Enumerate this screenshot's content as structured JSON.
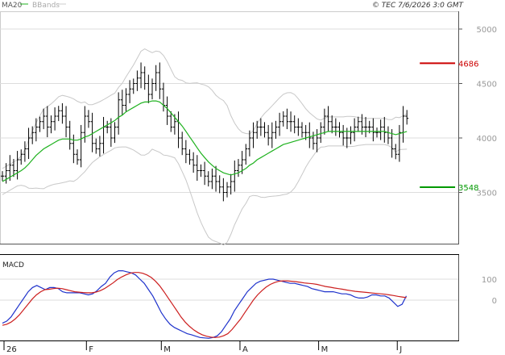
{
  "header": {
    "legend_ma": "MA20",
    "legend_bb": "BBands",
    "source": "© TEC 7/6/2026 3:0 GMT"
  },
  "colors": {
    "ma20": "#1fb21f",
    "bbands": "#c8c8c8",
    "candle": "#000000",
    "resistance": "#cc0000",
    "support": "#009900",
    "macd": "#1f33cc",
    "signal": "#cc1f1f"
  },
  "chart_data": [
    {
      "type": "line",
      "panel": "price",
      "yticks": [
        3500,
        4000,
        4500,
        5000
      ],
      "ylim": [
        3000,
        5200
      ],
      "xticks": [
        {
          "label": "26",
          "index": 0
        },
        {
          "label": "F",
          "index": 22
        },
        {
          "label": "M",
          "index": 42
        },
        {
          "label": "A",
          "index": 63
        },
        {
          "label": "M",
          "index": 84
        },
        {
          "label": "J",
          "index": 105
        }
      ],
      "n_points": 109,
      "resistance": {
        "value": 4686,
        "label": "4686",
        "from": 108,
        "to": 117
      },
      "support": {
        "value": 3548,
        "label": "3548",
        "from": 108,
        "to": 117
      },
      "close": [
        3650,
        3700,
        3750,
        3700,
        3800,
        3850,
        3900,
        4000,
        4050,
        4100,
        4150,
        4200,
        4100,
        4150,
        4200,
        4250,
        4200,
        4100,
        3950,
        3850,
        3800,
        4050,
        4200,
        4150,
        3950,
        3900,
        3950,
        4100,
        4100,
        4000,
        4100,
        4350,
        4300,
        4400,
        4450,
        4500,
        4550,
        4600,
        4500,
        4400,
        4500,
        4600,
        4450,
        4300,
        4200,
        4100,
        4150,
        4000,
        3900,
        3850,
        3800,
        3750,
        3700,
        3700,
        3650,
        3600,
        3650,
        3600,
        3550,
        3500,
        3550,
        3600,
        3700,
        3750,
        3800,
        3900,
        4000,
        4050,
        4100,
        4100,
        4050,
        4000,
        4050,
        4100,
        4150,
        4200,
        4150,
        4150,
        4100,
        4100,
        4050,
        4050,
        4000,
        3950,
        4000,
        4100,
        4200,
        4150,
        4100,
        4100,
        4050,
        4000,
        4000,
        4050,
        4100,
        4150,
        4100,
        4100,
        4100,
        4050,
        4050,
        4100,
        4050,
        4000,
        3900,
        3850,
        4050,
        4200,
        4180
      ],
      "series": [
        {
          "name": "MA20",
          "values": [
            3600,
            3620,
            3640,
            3660,
            3680,
            3700,
            3725,
            3760,
            3800,
            3840,
            3870,
            3900,
            3920,
            3940,
            3960,
            3980,
            3990,
            3990,
            3990,
            3980,
            3980,
            3990,
            4010,
            4020,
            4040,
            4060,
            4080,
            4100,
            4120,
            4140,
            4160,
            4190,
            4210,
            4240,
            4260,
            4280,
            4300,
            4320,
            4330,
            4330,
            4340,
            4340,
            4330,
            4300,
            4270,
            4230,
            4190,
            4150,
            4110,
            4060,
            4010,
            3960,
            3910,
            3860,
            3820,
            3780,
            3750,
            3720,
            3700,
            3680,
            3670,
            3660,
            3670,
            3680,
            3700,
            3720,
            3750,
            3770,
            3800,
            3820,
            3840,
            3860,
            3880,
            3900,
            3920,
            3940,
            3950,
            3960,
            3970,
            3980,
            3990,
            4000,
            4010,
            4020,
            4030,
            4040,
            4050,
            4060,
            4060,
            4060,
            4060,
            4060,
            4060,
            4060,
            4060,
            4060,
            4060,
            4060,
            4060,
            4060,
            4060,
            4060,
            4060,
            4050,
            4040,
            4030,
            4040,
            4050,
            4060
          ]
        }
      ]
    },
    {
      "type": "line",
      "panel": "macd",
      "title": "MACD",
      "yticks": [
        0,
        100
      ],
      "ylim": [
        -200,
        180
      ],
      "series": [
        {
          "name": "MACD",
          "values": [
            -110,
            -100,
            -80,
            -50,
            -20,
            10,
            40,
            60,
            70,
            60,
            50,
            60,
            60,
            55,
            40,
            35,
            35,
            35,
            35,
            30,
            25,
            30,
            45,
            65,
            80,
            110,
            130,
            140,
            140,
            135,
            130,
            120,
            100,
            80,
            50,
            20,
            -20,
            -60,
            -90,
            -115,
            -130,
            -140,
            -150,
            -160,
            -165,
            -172,
            -178,
            -180,
            -182,
            -178,
            -170,
            -150,
            -120,
            -90,
            -50,
            -20,
            10,
            40,
            60,
            80,
            90,
            95,
            100,
            100,
            95,
            90,
            85,
            80,
            80,
            75,
            70,
            65,
            55,
            50,
            45,
            40,
            40,
            40,
            35,
            30,
            30,
            25,
            15,
            10,
            10,
            15,
            25,
            25,
            20,
            20,
            10,
            -10,
            -30,
            -20,
            20
          ],
          "x_offset": 0
        },
        {
          "name": "Signal",
          "values": [
            -120,
            -115,
            -105,
            -90,
            -70,
            -45,
            -20,
            5,
            25,
            40,
            50,
            52,
            55,
            57,
            55,
            50,
            45,
            40,
            38,
            36,
            35,
            35,
            38,
            45,
            55,
            68,
            82,
            98,
            110,
            120,
            128,
            132,
            132,
            128,
            120,
            108,
            90,
            68,
            40,
            10,
            -20,
            -50,
            -80,
            -105,
            -125,
            -142,
            -155,
            -165,
            -172,
            -176,
            -178,
            -176,
            -170,
            -160,
            -140,
            -115,
            -90,
            -60,
            -30,
            0,
            25,
            45,
            62,
            75,
            84,
            90,
            92,
            92,
            90,
            88,
            85,
            82,
            80,
            78,
            75,
            70,
            65,
            62,
            58,
            55,
            52,
            48,
            45,
            42,
            40,
            38,
            36,
            34,
            32,
            30,
            28,
            25,
            22,
            18,
            15,
            12
          ],
          "x_offset": 0
        }
      ]
    }
  ]
}
